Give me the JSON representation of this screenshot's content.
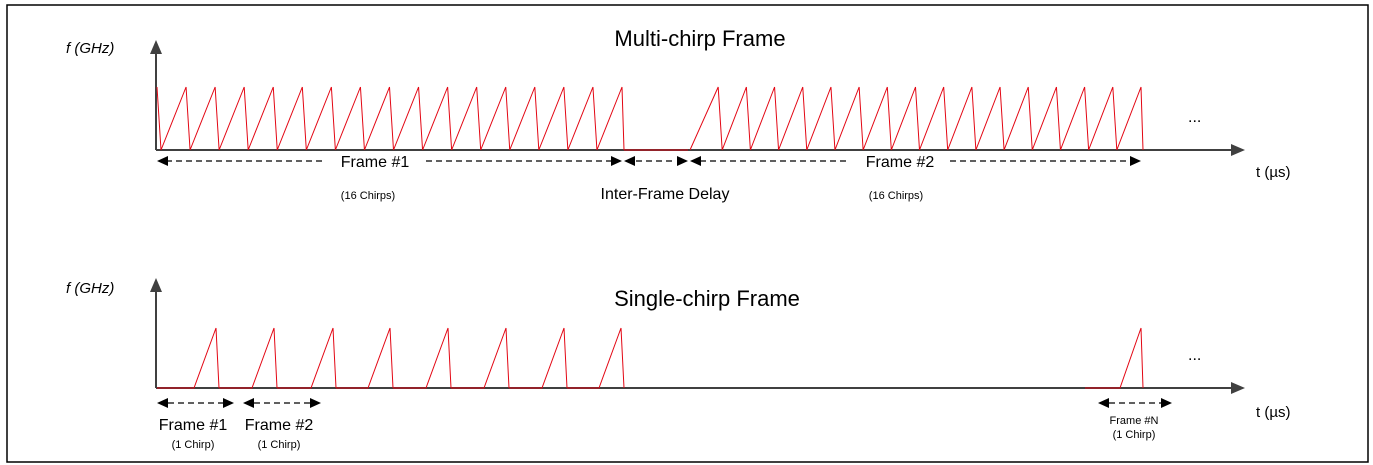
{
  "colors": {
    "chirp": "#e30613",
    "axis": "#404040",
    "border": "#000000"
  },
  "multi": {
    "title": "Multi-chirp Frame",
    "y_axis_label": "f (GHz)",
    "x_axis_label": "t (µs)",
    "ellipsis": "...",
    "frame1_label": "Frame #1",
    "frame1_sub": "(16 Chirps)",
    "delay_label": "Inter-Frame Delay",
    "frame2_label": "Frame #2",
    "frame2_sub": "(16 Chirps)",
    "chirps_per_frame": 16
  },
  "single": {
    "title": "Single-chirp Frame",
    "y_axis_label": "f (GHz)",
    "x_axis_label": "t (µs)",
    "ellipsis": "...",
    "frame1_label": "Frame #1",
    "frame1_sub": "(1 Chirp)",
    "frame2_label": "Frame #2",
    "frame2_sub": "(1 Chirp)",
    "frameN_label": "Frame #N",
    "frameN_sub": "(1 Chirp)",
    "chirps_per_frame": 1
  }
}
